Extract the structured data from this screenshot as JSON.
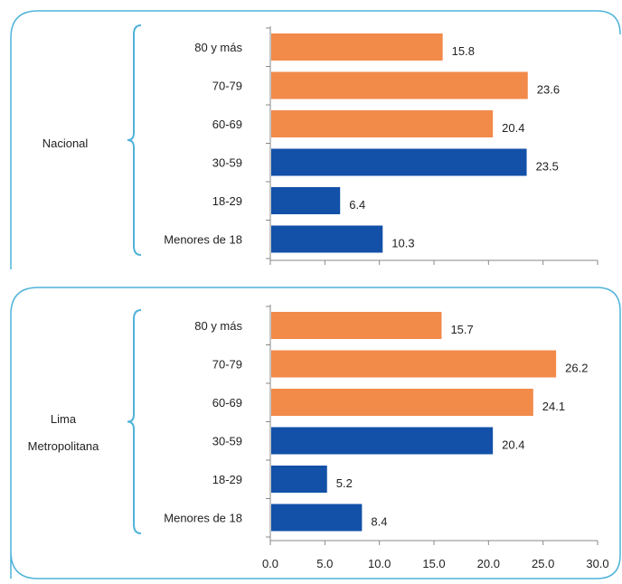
{
  "chart_data": [
    {
      "type": "bar",
      "orientation": "horizontal",
      "region_label": [
        "Nacional"
      ],
      "categories": [
        "80 y más",
        "70-79",
        "60-69",
        "30-59",
        "18-29",
        "Menores de 18"
      ],
      "values": [
        15.8,
        23.6,
        20.4,
        23.5,
        6.4,
        10.3
      ],
      "bar_colors": [
        "#F28A4A",
        "#F28A4A",
        "#F28A4A",
        "#1351A8",
        "#1351A8",
        "#1351A8"
      ],
      "xlim": [
        0,
        30
      ],
      "grid": false
    },
    {
      "type": "bar",
      "orientation": "horizontal",
      "region_label": [
        "Lima",
        "Metropolitana"
      ],
      "categories": [
        "80 y más",
        "70-79",
        "60-69",
        "30-59",
        "18-29",
        "Menores de 18"
      ],
      "values": [
        15.7,
        26.2,
        24.1,
        20.4,
        5.2,
        8.4
      ],
      "bar_colors": [
        "#F28A4A",
        "#F28A4A",
        "#F28A4A",
        "#1351A8",
        "#1351A8",
        "#1351A8"
      ],
      "xlim": [
        0,
        30
      ],
      "xticks": [
        "0.0",
        "5.0",
        "10.0",
        "15.0",
        "20.0",
        "25.0",
        "30.0"
      ],
      "grid": false
    }
  ],
  "colors": {
    "frame": "#4FB3D9",
    "old_age": "#F28A4A",
    "young_age": "#1351A8"
  }
}
